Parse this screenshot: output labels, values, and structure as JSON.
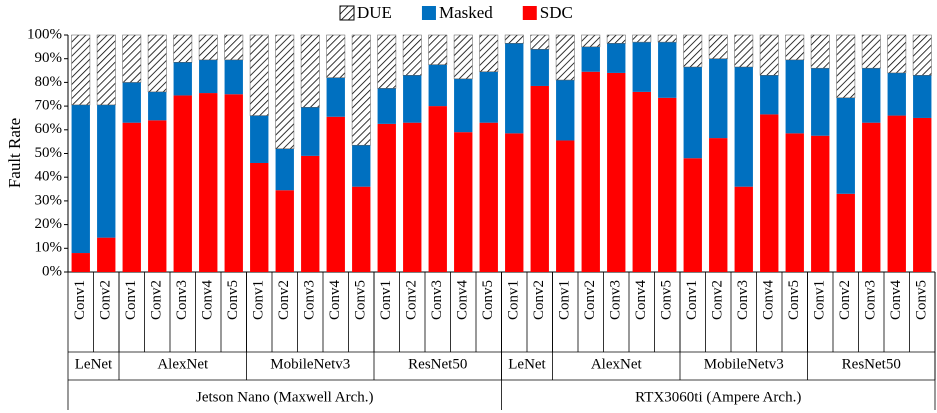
{
  "chart_data": {
    "type": "bar",
    "stacked": true,
    "y_label": "Fault Rate",
    "ylim": [
      0,
      100
    ],
    "yticks": [
      {
        "value": 0,
        "label": "0%"
      },
      {
        "value": 10,
        "label": "10%"
      },
      {
        "value": 20,
        "label": "20%"
      },
      {
        "value": 30,
        "label": "30%"
      },
      {
        "value": 40,
        "label": "40%"
      },
      {
        "value": 50,
        "label": "50%"
      },
      {
        "value": 60,
        "label": "60%"
      },
      {
        "value": 70,
        "label": "70%"
      },
      {
        "value": 80,
        "label": "80%"
      },
      {
        "value": 90,
        "label": "90%"
      },
      {
        "value": 100,
        "label": "100%"
      }
    ],
    "legend": "top",
    "groups": [
      {
        "name": "Jetson Nano (Maxwell Arch.)",
        "models": [
          {
            "name": "LeNet",
            "categories": [
              "Conv1",
              "Conv2"
            ]
          },
          {
            "name": "AlexNet",
            "categories": [
              "Conv1",
              "Conv2",
              "Conv3",
              "Conv4",
              "Conv5"
            ]
          },
          {
            "name": "MobileNetv3",
            "categories": [
              "Conv1",
              "Conv2",
              "Conv3",
              "Conv4",
              "Conv5"
            ]
          },
          {
            "name": "ResNet50",
            "categories": [
              "Conv1",
              "Conv2",
              "Conv3",
              "Conv4",
              "Conv5"
            ]
          }
        ]
      },
      {
        "name": "RTX3060ti (Ampere Arch.)",
        "models": [
          {
            "name": "LeNet",
            "categories": [
              "Conv1",
              "Conv2"
            ]
          },
          {
            "name": "AlexNet",
            "categories": [
              "Conv1",
              "Conv2",
              "Conv3",
              "Conv4",
              "Conv5"
            ]
          },
          {
            "name": "MobileNetv3",
            "categories": [
              "Conv1",
              "Conv2",
              "Conv3",
              "Conv4",
              "Conv5"
            ]
          },
          {
            "name": "ResNet50",
            "categories": [
              "Conv1",
              "Conv2",
              "Conv3",
              "Conv4",
              "Conv5"
            ]
          }
        ]
      }
    ],
    "series": [
      {
        "name": "DUE",
        "color": "#000000",
        "hatch": true,
        "values": [
          29.5,
          29.5,
          20,
          24,
          11.5,
          10.5,
          10.5,
          34,
          48,
          30.5,
          18,
          46.5,
          22.5,
          17,
          12.5,
          18.5,
          15.5,
          3.5,
          6,
          19,
          5,
          3.5,
          3,
          3,
          13.5,
          10,
          13.5,
          17,
          10.5,
          14,
          26.5,
          14,
          16,
          17
        ]
      },
      {
        "name": "Masked",
        "color": "#0070c0",
        "values": [
          62.5,
          56,
          17,
          12,
          14,
          14,
          14.5,
          20,
          17.5,
          20.5,
          16.5,
          17.5,
          15,
          20,
          17.5,
          22.5,
          21.5,
          38,
          15.5,
          25.5,
          10.5,
          12.5,
          21,
          23.5,
          38.5,
          33.5,
          50.5,
          16.5,
          31,
          28.5,
          40.5,
          23,
          18,
          18
        ]
      },
      {
        "name": "SDC",
        "color": "#ff0000",
        "values": [
          8,
          14.5,
          63,
          64,
          74.5,
          75.5,
          75,
          46,
          34.5,
          49,
          65.5,
          36,
          62.5,
          63,
          70,
          59,
          63,
          58.5,
          78.5,
          55.5,
          84.5,
          84,
          76,
          73.5,
          48,
          56.5,
          36,
          66.5,
          58.5,
          57.5,
          33,
          63,
          66,
          65
        ]
      }
    ]
  }
}
